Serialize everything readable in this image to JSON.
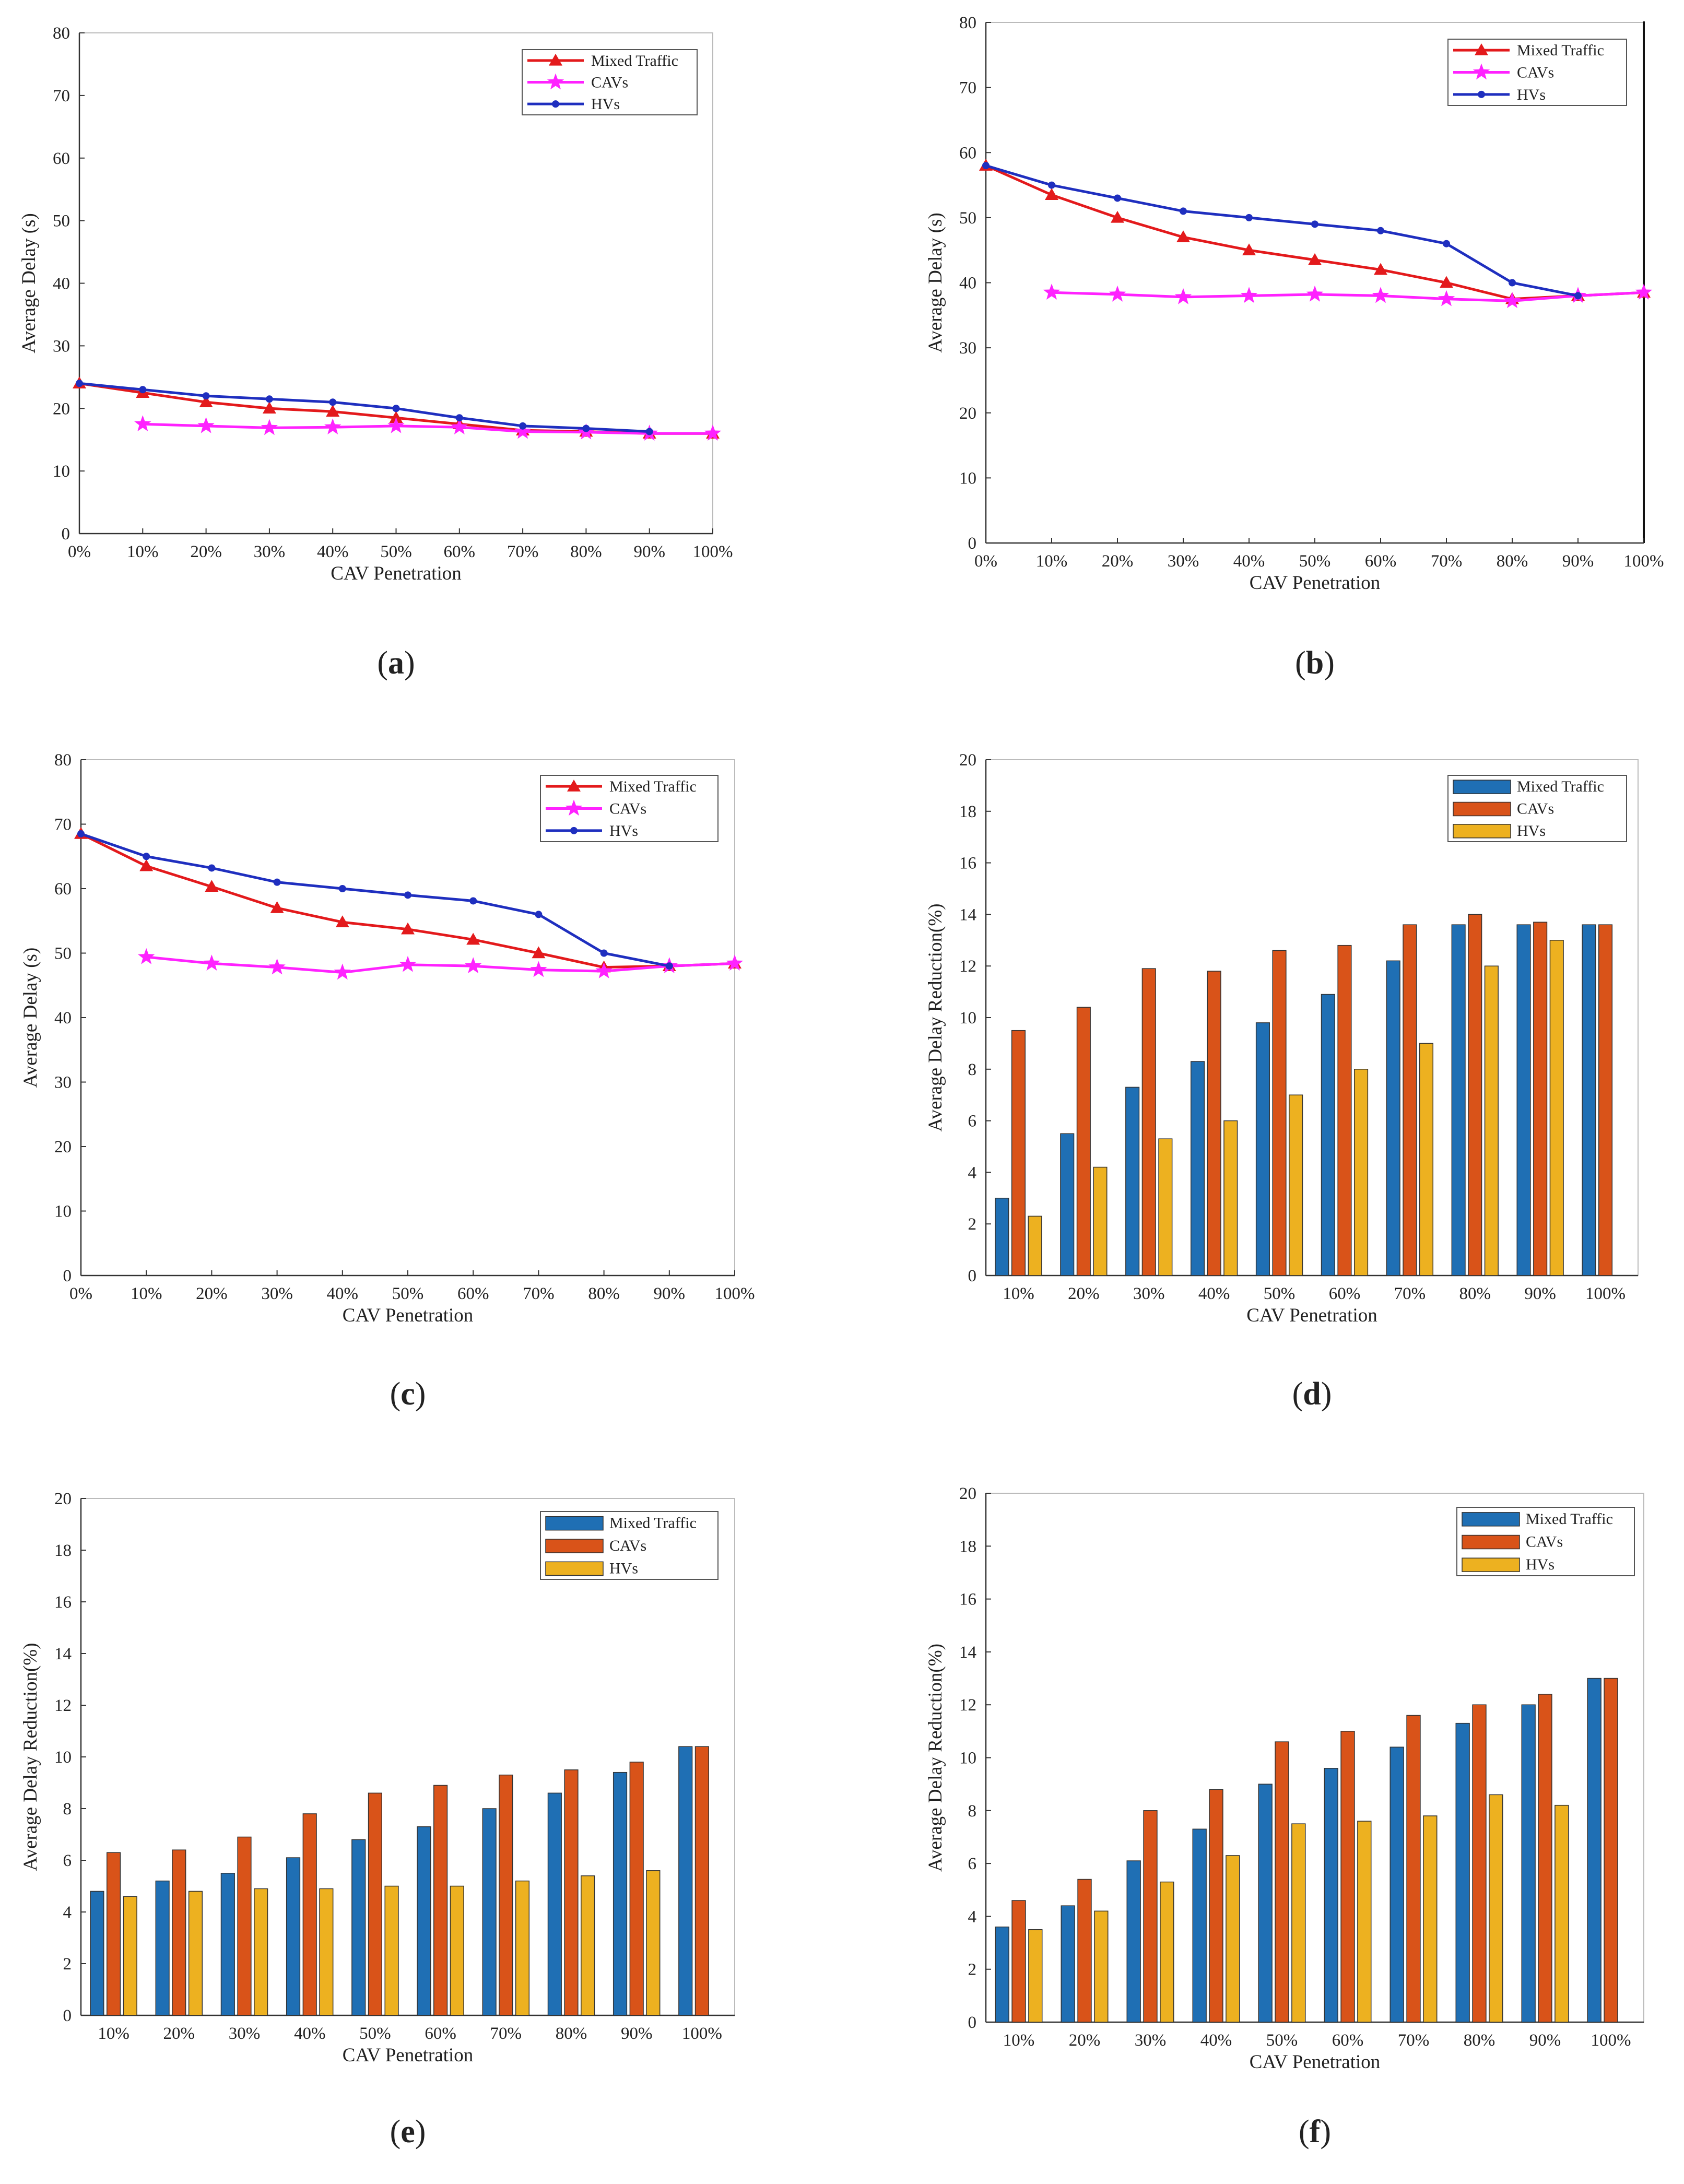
{
  "colors": {
    "mixed_line": "#e31a1c",
    "cavs_line": "#ff22ff",
    "hvs_line": "#1f2fbf",
    "mixed_bar": "#1f6fb4",
    "cavs_bar": "#d95319",
    "hvs_bar": "#edb120"
  },
  "chart_data": [
    {
      "id": "a",
      "panel_label": "a",
      "type": "line",
      "title": "",
      "xlabel": "CAV Penetration",
      "ylabel": "Average Delay (s)",
      "ylim": [
        0,
        80
      ],
      "yticks": [
        0,
        10,
        20,
        30,
        40,
        50,
        60,
        70,
        80
      ],
      "categories": [
        "0%",
        "10%",
        "20%",
        "30%",
        "40%",
        "50%",
        "60%",
        "70%",
        "80%",
        "90%",
        "100%"
      ],
      "legend_position": "top-right",
      "series": [
        {
          "name": "Mixed Traffic",
          "color_key": "mixed_line",
          "marker": "triangle",
          "values": [
            24,
            22.5,
            21,
            20,
            19.5,
            18.5,
            17.5,
            16.5,
            16.3,
            16,
            16
          ]
        },
        {
          "name": "CAVs",
          "color_key": "cavs_line",
          "marker": "star",
          "values": [
            null,
            17.5,
            17.2,
            16.9,
            17,
            17.2,
            17,
            16.3,
            16.2,
            16,
            16
          ]
        },
        {
          "name": "HVs",
          "color_key": "hvs_line",
          "marker": "dot",
          "values": [
            24,
            23,
            22,
            21.5,
            21,
            20,
            18.5,
            17.2,
            16.8,
            16.3,
            null
          ]
        }
      ]
    },
    {
      "id": "b",
      "panel_label": "b",
      "type": "line",
      "title": "",
      "xlabel": "CAV Penetration",
      "ylabel": "Average Delay (s)",
      "ylim": [
        0,
        80
      ],
      "yticks": [
        0,
        10,
        20,
        30,
        40,
        50,
        60,
        70,
        80
      ],
      "categories": [
        "0%",
        "10%",
        "20%",
        "30%",
        "40%",
        "50%",
        "60%",
        "70%",
        "80%",
        "90%",
        "100%"
      ],
      "legend_position": "top-right",
      "series": [
        {
          "name": "Mixed Traffic",
          "color_key": "mixed_line",
          "marker": "triangle",
          "values": [
            58,
            53.5,
            50,
            47,
            45,
            43.5,
            42,
            40,
            37.5,
            38,
            38.5
          ]
        },
        {
          "name": "CAVs",
          "color_key": "cavs_line",
          "marker": "star",
          "values": [
            null,
            38.5,
            38.2,
            37.8,
            38,
            38.2,
            38,
            37.5,
            37.2,
            38,
            38.5
          ]
        },
        {
          "name": "HVs",
          "color_key": "hvs_line",
          "marker": "dot",
          "values": [
            58,
            55,
            53,
            51,
            50,
            49,
            48,
            46,
            40,
            38,
            null
          ]
        }
      ]
    },
    {
      "id": "c",
      "panel_label": "c",
      "type": "line",
      "title": "",
      "xlabel": "CAV Penetration",
      "ylabel": "Average Delay (s)",
      "ylim": [
        0,
        80
      ],
      "yticks": [
        0,
        10,
        20,
        30,
        40,
        50,
        60,
        70,
        80
      ],
      "categories": [
        "0%",
        "10%",
        "20%",
        "30%",
        "40%",
        "50%",
        "60%",
        "70%",
        "80%",
        "90%",
        "100%"
      ],
      "legend_position": "top-right",
      "series": [
        {
          "name": "Mixed Traffic",
          "color_key": "mixed_line",
          "marker": "triangle",
          "values": [
            68.5,
            63.5,
            60.3,
            57,
            54.8,
            53.7,
            52.1,
            50,
            47.8,
            48,
            48.4
          ]
        },
        {
          "name": "CAVs",
          "color_key": "cavs_line",
          "marker": "star",
          "values": [
            null,
            49.4,
            48.4,
            47.8,
            47,
            48.2,
            48,
            47.4,
            47.2,
            48,
            48.4
          ]
        },
        {
          "name": "HVs",
          "color_key": "hvs_line",
          "marker": "dot",
          "values": [
            68.5,
            65,
            63.2,
            61,
            60,
            59,
            58.1,
            56,
            50,
            48,
            null
          ]
        }
      ]
    },
    {
      "id": "d",
      "panel_label": "d",
      "type": "bar",
      "title": "",
      "xlabel": "CAV Penetration",
      "ylabel": "Average Delay Reduction(%)",
      "ylim": [
        0,
        20
      ],
      "yticks": [
        0,
        2,
        4,
        6,
        8,
        10,
        12,
        14,
        16,
        18,
        20
      ],
      "categories": [
        "10%",
        "20%",
        "30%",
        "40%",
        "50%",
        "60%",
        "70%",
        "80%",
        "90%",
        "100%"
      ],
      "legend_position": "top-right",
      "series": [
        {
          "name": "Mixed Traffic",
          "color_key": "mixed_bar",
          "values": [
            3,
            5.5,
            7.3,
            8.3,
            9.8,
            10.9,
            12.2,
            13.6,
            13.6,
            13.6
          ]
        },
        {
          "name": "CAVs",
          "color_key": "cavs_bar",
          "values": [
            9.5,
            10.4,
            11.9,
            11.8,
            12.6,
            12.8,
            13.6,
            14,
            13.7,
            13.6
          ]
        },
        {
          "name": "HVs",
          "color_key": "hvs_bar",
          "values": [
            2.3,
            4.2,
            5.3,
            6,
            7,
            8,
            9,
            12,
            13,
            null
          ]
        }
      ]
    },
    {
      "id": "e",
      "panel_label": "e",
      "type": "bar",
      "title": "",
      "xlabel": "CAV Penetration",
      "ylabel": "Average Delay Reduction(%)",
      "ylim": [
        0,
        20
      ],
      "yticks": [
        0,
        2,
        4,
        6,
        8,
        10,
        12,
        14,
        16,
        18,
        20
      ],
      "categories": [
        "10%",
        "20%",
        "30%",
        "40%",
        "50%",
        "60%",
        "70%",
        "80%",
        "90%",
        "100%"
      ],
      "legend_position": "top-right",
      "series": [
        {
          "name": "Mixed Traffic",
          "color_key": "mixed_bar",
          "values": [
            4.8,
            5.2,
            5.5,
            6.1,
            6.8,
            7.3,
            8,
            8.6,
            9.4,
            10.4
          ]
        },
        {
          "name": "CAVs",
          "color_key": "cavs_bar",
          "values": [
            6.3,
            6.4,
            6.9,
            7.8,
            8.6,
            8.9,
            9.3,
            9.5,
            9.8,
            10.4
          ]
        },
        {
          "name": "HVs",
          "color_key": "hvs_bar",
          "values": [
            4.6,
            4.8,
            4.9,
            4.9,
            5,
            5,
            5.2,
            5.4,
            5.6,
            null
          ]
        }
      ]
    },
    {
      "id": "f",
      "panel_label": "f",
      "type": "bar",
      "title": "",
      "xlabel": "CAV Penetration",
      "ylabel": "Average Delay Reduction(%)",
      "ylim": [
        0,
        20
      ],
      "yticks": [
        0,
        2,
        4,
        6,
        8,
        10,
        12,
        14,
        16,
        18,
        20
      ],
      "categories": [
        "10%",
        "20%",
        "30%",
        "40%",
        "50%",
        "60%",
        "70%",
        "80%",
        "90%",
        "100%"
      ],
      "legend_position": "top-right",
      "series": [
        {
          "name": "Mixed Traffic",
          "color_key": "mixed_bar",
          "values": [
            3.6,
            4.4,
            6.1,
            7.3,
            9,
            9.6,
            10.4,
            11.3,
            12,
            13
          ]
        },
        {
          "name": "CAVs",
          "color_key": "cavs_bar",
          "values": [
            4.6,
            5.4,
            8,
            8.8,
            10.6,
            11,
            11.6,
            12,
            12.4,
            13
          ]
        },
        {
          "name": "HVs",
          "color_key": "hvs_bar",
          "values": [
            3.5,
            4.2,
            5.3,
            6.3,
            7.5,
            7.6,
            7.8,
            8.6,
            8.2,
            null
          ]
        }
      ]
    }
  ]
}
